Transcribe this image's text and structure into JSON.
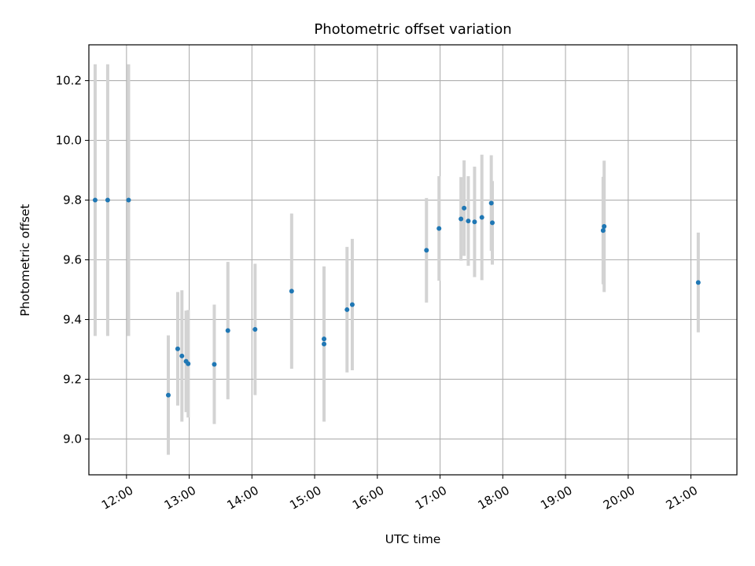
{
  "chart_data": {
    "type": "scatter",
    "title": "Photometric offset variation",
    "xlabel": "UTC time",
    "ylabel": "Photometric offset",
    "xlim": [
      "11:24",
      "21:44"
    ],
    "ylim": [
      8.88,
      10.32
    ],
    "x_ticks": [
      "12:00",
      "13:00",
      "14:00",
      "15:00",
      "16:00",
      "17:00",
      "18:00",
      "19:00",
      "20:00",
      "21:00"
    ],
    "y_ticks": [
      9.0,
      9.2,
      9.4,
      9.6,
      9.8,
      10.0,
      10.2
    ],
    "grid": true,
    "colors": {
      "marker": "#1f77b4",
      "errorbar": "#d3d3d3",
      "grid": "#b0b0b0"
    },
    "points": [
      {
        "x": "11:30",
        "y": 9.8,
        "err": 0.455
      },
      {
        "x": "11:42",
        "y": 9.8,
        "err": 0.455
      },
      {
        "x": "12:02",
        "y": 9.8,
        "err": 0.455
      },
      {
        "x": "12:40",
        "y": 9.147,
        "err": 0.2
      },
      {
        "x": "12:49",
        "y": 9.302,
        "err": 0.19
      },
      {
        "x": "12:53",
        "y": 9.278,
        "err": 0.22
      },
      {
        "x": "12:57",
        "y": 9.26,
        "err": 0.17
      },
      {
        "x": "12:59",
        "y": 9.252,
        "err": 0.18
      },
      {
        "x": "13:24",
        "y": 9.25,
        "err": 0.2
      },
      {
        "x": "13:37",
        "y": 9.363,
        "err": 0.23
      },
      {
        "x": "14:03",
        "y": 9.367,
        "err": 0.22
      },
      {
        "x": "14:38",
        "y": 9.495,
        "err": 0.26
      },
      {
        "x": "15:09",
        "y": 9.318,
        "err": 0.26
      },
      {
        "x": "15:09",
        "y": 9.335,
        "err": 0.24
      },
      {
        "x": "15:31",
        "y": 9.433,
        "err": 0.21
      },
      {
        "x": "15:36",
        "y": 9.45,
        "err": 0.22
      },
      {
        "x": "16:47",
        "y": 9.632,
        "err": 0.175
      },
      {
        "x": "16:59",
        "y": 9.705,
        "err": 0.175
      },
      {
        "x": "17:20",
        "y": 9.737,
        "err": 0.14
      },
      {
        "x": "17:23",
        "y": 9.773,
        "err": 0.16
      },
      {
        "x": "17:27",
        "y": 9.73,
        "err": 0.15
      },
      {
        "x": "17:33",
        "y": 9.727,
        "err": 0.185
      },
      {
        "x": "17:40",
        "y": 9.742,
        "err": 0.21
      },
      {
        "x": "17:49",
        "y": 9.79,
        "err": 0.16
      },
      {
        "x": "17:50",
        "y": 9.724,
        "err": 0.14
      },
      {
        "x": "19:36",
        "y": 9.698,
        "err": 0.18
      },
      {
        "x": "19:37",
        "y": 9.712,
        "err": 0.22
      },
      {
        "x": "21:07",
        "y": 9.524,
        "err": 0.167
      }
    ]
  }
}
